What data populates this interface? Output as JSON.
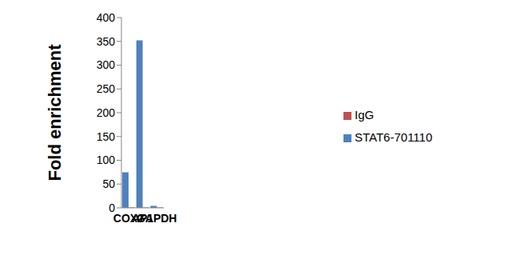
{
  "chart_data": {
    "type": "bar",
    "y_label": "Fold enrichment",
    "categories": [
      "COX2",
      "AP1",
      "GAPDH"
    ],
    "series": [
      {
        "name": "STAT6-701110",
        "color": "#4f81bd",
        "values": [
          75,
          352,
          4
        ]
      },
      {
        "name": "IgG",
        "color": "#c0504d",
        "values": [
          1,
          1,
          1
        ]
      }
    ],
    "ylim": [
      0,
      400
    ],
    "yticks": [
      0,
      50,
      100,
      150,
      200,
      250,
      300,
      350,
      400
    ],
    "grid": false,
    "legend": "right"
  }
}
